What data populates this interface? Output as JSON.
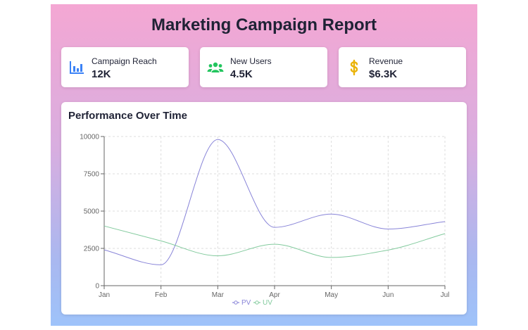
{
  "report": {
    "title": "Marketing Campaign Report"
  },
  "cards": [
    {
      "label": "Campaign Reach",
      "value": "12K",
      "icon": "bar-chart-icon",
      "color": "#3b82f6"
    },
    {
      "label": "New Users",
      "value": "4.5K",
      "icon": "users-icon",
      "color": "#22c55e"
    },
    {
      "label": "Revenue",
      "value": "$6.3K",
      "icon": "dollar-icon",
      "color": "#eab308"
    }
  ],
  "chart_data": {
    "type": "line",
    "title": "Performance Over Time",
    "categories": [
      "Jan",
      "Feb",
      "Mar",
      "Apr",
      "May",
      "Jun",
      "Jul"
    ],
    "series": [
      {
        "name": "PV",
        "values": [
          2400,
          1398,
          9800,
          3908,
          4800,
          3800,
          4300
        ],
        "color": "#8884d8"
      },
      {
        "name": "UV",
        "values": [
          4000,
          3000,
          2000,
          2780,
          1890,
          2390,
          3490
        ],
        "color": "#82ca9d"
      }
    ],
    "ylim": [
      0,
      10000
    ],
    "yticks": [
      0,
      2500,
      5000,
      7500,
      10000
    ],
    "grid": true,
    "legend": "bottom-center"
  }
}
